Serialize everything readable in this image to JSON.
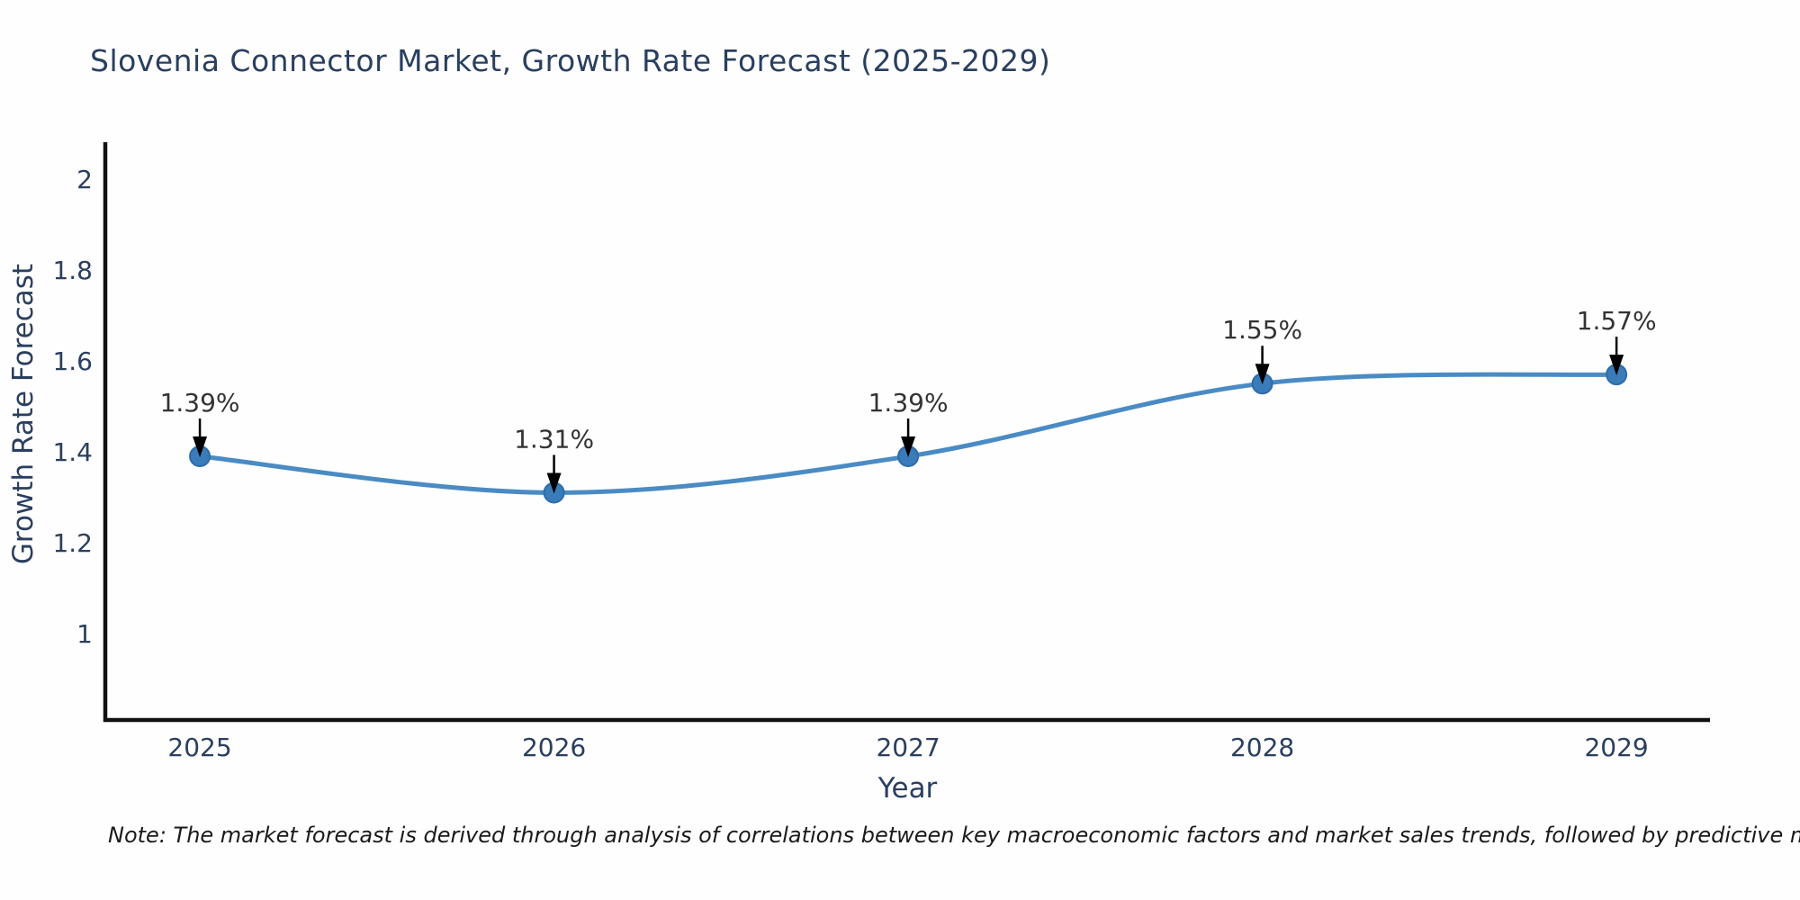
{
  "figure": {
    "title": "Slovenia Connector Market, Growth Rate Forecast (2025-2029)",
    "note": "Note: The market forecast is derived through analysis of correlations between key macroeconomic factors and market sales trends, followed by predictive modeling to project future sales"
  },
  "chart_data": {
    "type": "line",
    "title": "Slovenia Connector Market, Growth Rate Forecast (2025-2029)",
    "xlabel": "Year",
    "ylabel": "Growth Rate Forecast",
    "x": [
      2025,
      2026,
      2027,
      2028,
      2029
    ],
    "series": [
      {
        "name": "Growth Rate Forecast",
        "values": [
          1.39,
          1.31,
          1.39,
          1.55,
          1.57
        ],
        "point_labels": [
          "1.39%",
          "1.31%",
          "1.39%",
          "1.55%",
          "1.57%"
        ]
      }
    ],
    "xtick_labels": [
      "2025",
      "2026",
      "2027",
      "2028",
      "2029"
    ],
    "yticks": [
      1,
      1.2,
      1.4,
      1.6,
      1.8,
      2
    ],
    "ytick_labels": [
      "1",
      "1.2",
      "1.4",
      "1.6",
      "1.8",
      "2"
    ],
    "xlim": [
      2024.733,
      2029.264
    ],
    "ylim": [
      0.81,
      2.081
    ],
    "grid": false,
    "legend": "none",
    "line_shape": "spline",
    "colors": {
      "line": "#4a8bc4",
      "marker_fill": "#3a7cba",
      "marker_edge": "#2e6ca8",
      "axis_line": "#111111",
      "tick_text": "#2a3f5f",
      "title_text": "#2a3f5f",
      "annotation_text": "#333333",
      "annotation_arrow": "#000000",
      "background": "#fefefe"
    }
  }
}
